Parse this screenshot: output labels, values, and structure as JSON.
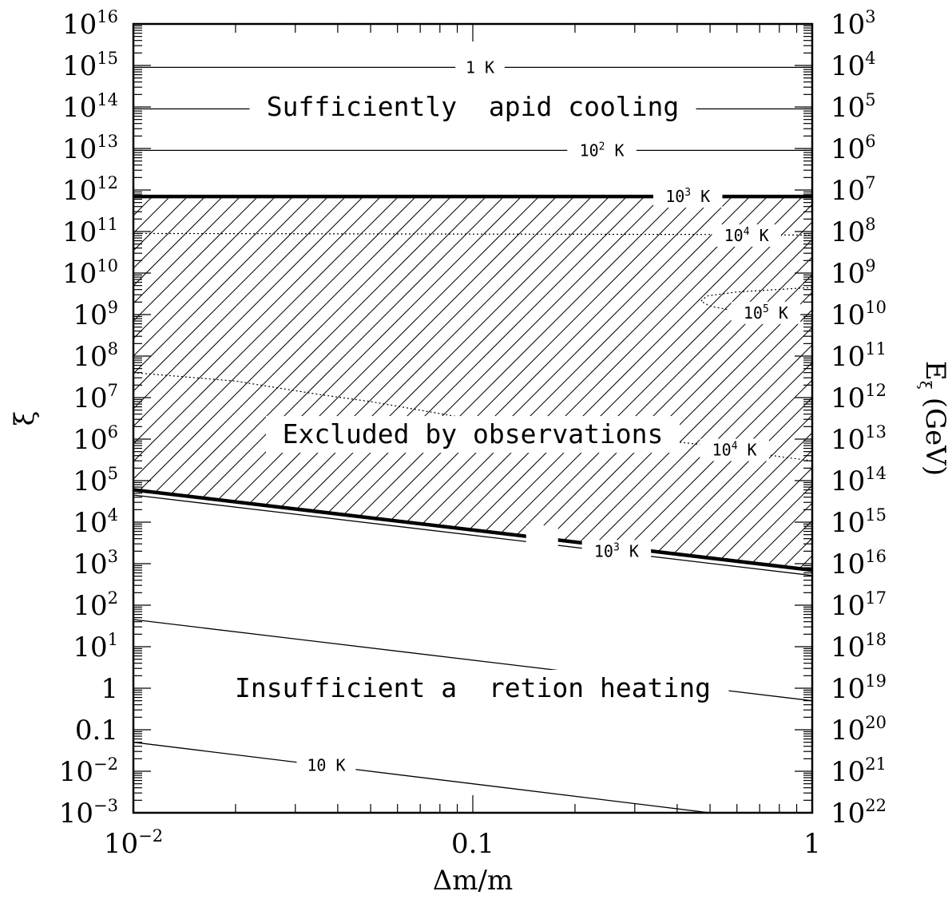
{
  "chart_data": {
    "type": "line",
    "xlabel": "Δm/m",
    "ylabel": "ξ",
    "y2label": "E",
    "y2label_sub": "ξ",
    "y2label_unit": "(GeV)",
    "x_scale": "log",
    "y_scale": "log",
    "xlim": [
      0.01,
      1
    ],
    "ylim": [
      0.001,
      1e+16
    ],
    "grid": false,
    "x_ticks": [
      {
        "value": 0.01,
        "base": "10",
        "exp": "−2"
      },
      {
        "value": 0.1,
        "base": "0.1",
        "exp": ""
      },
      {
        "value": 1,
        "base": "1",
        "exp": ""
      }
    ],
    "y_ticks": [
      {
        "value": 1e+16,
        "base": "10",
        "exp": "16"
      },
      {
        "value": 1000000000000000.0,
        "base": "10",
        "exp": "15"
      },
      {
        "value": 100000000000000.0,
        "base": "10",
        "exp": "14"
      },
      {
        "value": 10000000000000.0,
        "base": "10",
        "exp": "13"
      },
      {
        "value": 1000000000000.0,
        "base": "10",
        "exp": "12"
      },
      {
        "value": 100000000000.0,
        "base": "10",
        "exp": "11"
      },
      {
        "value": 10000000000.0,
        "base": "10",
        "exp": "10"
      },
      {
        "value": 1000000000.0,
        "base": "10",
        "exp": "9"
      },
      {
        "value": 100000000.0,
        "base": "10",
        "exp": "8"
      },
      {
        "value": 10000000.0,
        "base": "10",
        "exp": "7"
      },
      {
        "value": 1000000.0,
        "base": "10",
        "exp": "6"
      },
      {
        "value": 100000.0,
        "base": "10",
        "exp": "5"
      },
      {
        "value": 10000.0,
        "base": "10",
        "exp": "4"
      },
      {
        "value": 1000.0,
        "base": "10",
        "exp": "3"
      },
      {
        "value": 100.0,
        "base": "10",
        "exp": "2"
      },
      {
        "value": 10.0,
        "base": "10",
        "exp": "1"
      },
      {
        "value": 1,
        "base": "1",
        "exp": ""
      },
      {
        "value": 0.1,
        "base": "0.1",
        "exp": ""
      },
      {
        "value": 0.01,
        "base": "10",
        "exp": "−2"
      },
      {
        "value": 0.001,
        "base": "10",
        "exp": "−3"
      }
    ],
    "y2_ticks": [
      {
        "value": 1e+16,
        "base": "10",
        "exp": "3"
      },
      {
        "value": 1000000000000000.0,
        "base": "10",
        "exp": "4"
      },
      {
        "value": 100000000000000.0,
        "base": "10",
        "exp": "5"
      },
      {
        "value": 10000000000000.0,
        "base": "10",
        "exp": "6"
      },
      {
        "value": 1000000000000.0,
        "base": "10",
        "exp": "7"
      },
      {
        "value": 100000000000.0,
        "base": "10",
        "exp": "8"
      },
      {
        "value": 10000000000.0,
        "base": "10",
        "exp": "9"
      },
      {
        "value": 1000000000.0,
        "base": "10",
        "exp": "10"
      },
      {
        "value": 100000000.0,
        "base": "10",
        "exp": "11"
      },
      {
        "value": 10000000.0,
        "base": "10",
        "exp": "12"
      },
      {
        "value": 1000000.0,
        "base": "10",
        "exp": "13"
      },
      {
        "value": 100000.0,
        "base": "10",
        "exp": "14"
      },
      {
        "value": 10000.0,
        "base": "10",
        "exp": "15"
      },
      {
        "value": 1000.0,
        "base": "10",
        "exp": "16"
      },
      {
        "value": 100.0,
        "base": "10",
        "exp": "17"
      },
      {
        "value": 10.0,
        "base": "10",
        "exp": "18"
      },
      {
        "value": 1,
        "base": "10",
        "exp": "19"
      },
      {
        "value": 0.1,
        "base": "10",
        "exp": "20"
      },
      {
        "value": 0.01,
        "base": "10",
        "exp": "21"
      },
      {
        "value": 0.001,
        "base": "10",
        "exp": "22"
      }
    ],
    "hatched_region": {
      "label": "Excluded by observations",
      "upper_boundary": [
        [
          0.01,
          700000000000.0
        ],
        [
          1,
          700000000000.0
        ]
      ],
      "lower_boundary": [
        [
          0.01,
          60000.0
        ],
        [
          1,
          700
        ]
      ]
    },
    "region_labels": [
      {
        "text": "Sufficiently rapid cooling",
        "x": 0.1,
        "y": 100000000000000.0
      },
      {
        "text": "Excluded by observations",
        "x": 0.1,
        "y": 1300000.0
      },
      {
        "text": "Insufficient accretion heating",
        "x": 0.1,
        "y": 1
      }
    ],
    "series": [
      {
        "style": "solid",
        "width": 1.3,
        "points": [
          [
            0.01,
            900000000000000.0
          ],
          [
            1,
            900000000000000.0
          ]
        ],
        "label": {
          "base": "1 K",
          "sup": "",
          "suffix": "",
          "x": 0.105,
          "y": 900000000000000.0
        }
      },
      {
        "style": "solid",
        "width": 1.3,
        "points": [
          [
            0.01,
            90000000000000.0
          ],
          [
            1,
            90000000000000.0
          ]
        ],
        "label": {
          "base": "",
          "sup": "",
          "suffix": "",
          "x": 0.1,
          "y": 90000000000000.0
        }
      },
      {
        "style": "solid",
        "width": 1.3,
        "points": [
          [
            0.01,
            9000000000000.0
          ],
          [
            1,
            9000000000000.0
          ]
        ],
        "label": {
          "base": "10",
          "sup": "2",
          "suffix": " K",
          "x": 0.24,
          "y": 9000000000000.0
        }
      },
      {
        "style": "solid",
        "width": 4.5,
        "points": [
          [
            0.01,
            700000000000.0
          ],
          [
            1,
            700000000000.0
          ]
        ],
        "label": {
          "base": "10",
          "sup": "3",
          "suffix": " K",
          "x": 0.43,
          "y": 700000000000.0
        }
      },
      {
        "style": "dotted",
        "width": 1.2,
        "points": [
          [
            0.01,
            90000000000.0
          ],
          [
            0.5,
            85000000000.0
          ],
          [
            1,
            82000000000.0
          ]
        ],
        "label": {
          "base": "10",
          "sup": "4",
          "suffix": " K",
          "x": 0.64,
          "y": 80000000000.0
        }
      },
      {
        "style": "dotted",
        "width": 1.2,
        "points": [
          [
            1,
            4500000000.0
          ],
          [
            0.6,
            3500000000.0
          ],
          [
            0.49,
            2800000000.0
          ],
          [
            0.47,
            2100000000.0
          ],
          [
            0.5,
            1600000000.0
          ],
          [
            0.57,
            1300000000.0
          ]
        ],
        "label": {
          "base": "10",
          "sup": "5",
          "suffix": " K",
          "x": 0.73,
          "y": 1100000000.0
        }
      },
      {
        "style": "dotted",
        "width": 1.2,
        "points": [
          [
            0.01,
            40000000.0
          ],
          [
            0.02,
            25000000.0
          ],
          [
            0.035,
            12000000.0
          ],
          [
            0.05,
            8000000.0
          ],
          [
            0.1,
            3000000.0
          ],
          [
            0.5,
            700000.0
          ],
          [
            0.8,
            380000.0
          ],
          [
            1,
            300000.0
          ]
        ],
        "label": {
          "base": "10",
          "sup": "4",
          "suffix": " K",
          "x": 0.59,
          "y": 550000.0
        }
      },
      {
        "style": "solid",
        "width": 4.5,
        "points": [
          [
            0.01,
            60000.0
          ],
          [
            1,
            700
          ]
        ],
        "label": {
          "base": "",
          "sup": "",
          "suffix": "",
          "x": 0.16,
          "y": 4500
        }
      },
      {
        "style": "solid",
        "width": 1.3,
        "points": [
          [
            0.01,
            45000.0
          ],
          [
            1,
            520
          ]
        ],
        "label": {
          "base": "10",
          "sup": "3",
          "suffix": " K",
          "x": 0.265,
          "y": 2000
        }
      },
      {
        "style": "solid",
        "width": 1.3,
        "points": [
          [
            0.01,
            45
          ],
          [
            1,
            0.5
          ]
        ],
        "label": {
          "base": "",
          "sup": "",
          "suffix": "",
          "x": 0.1,
          "y": 1
        }
      },
      {
        "style": "solid",
        "width": 1.3,
        "points": [
          [
            0.01,
            0.05
          ],
          [
            1,
            0.0005
          ]
        ],
        "label": {
          "base": "10 K",
          "sup": "",
          "suffix": "",
          "x": 0.037,
          "y": 0.014
        }
      }
    ]
  }
}
